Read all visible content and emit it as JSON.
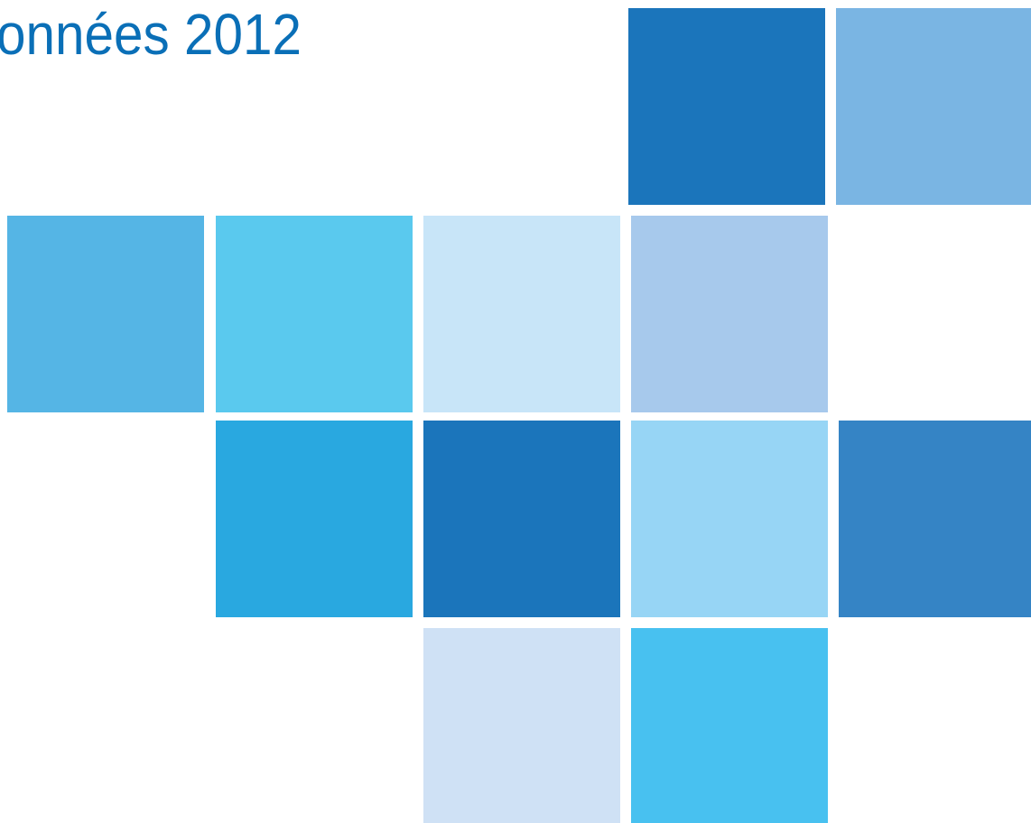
{
  "title": "onnées 2012"
}
